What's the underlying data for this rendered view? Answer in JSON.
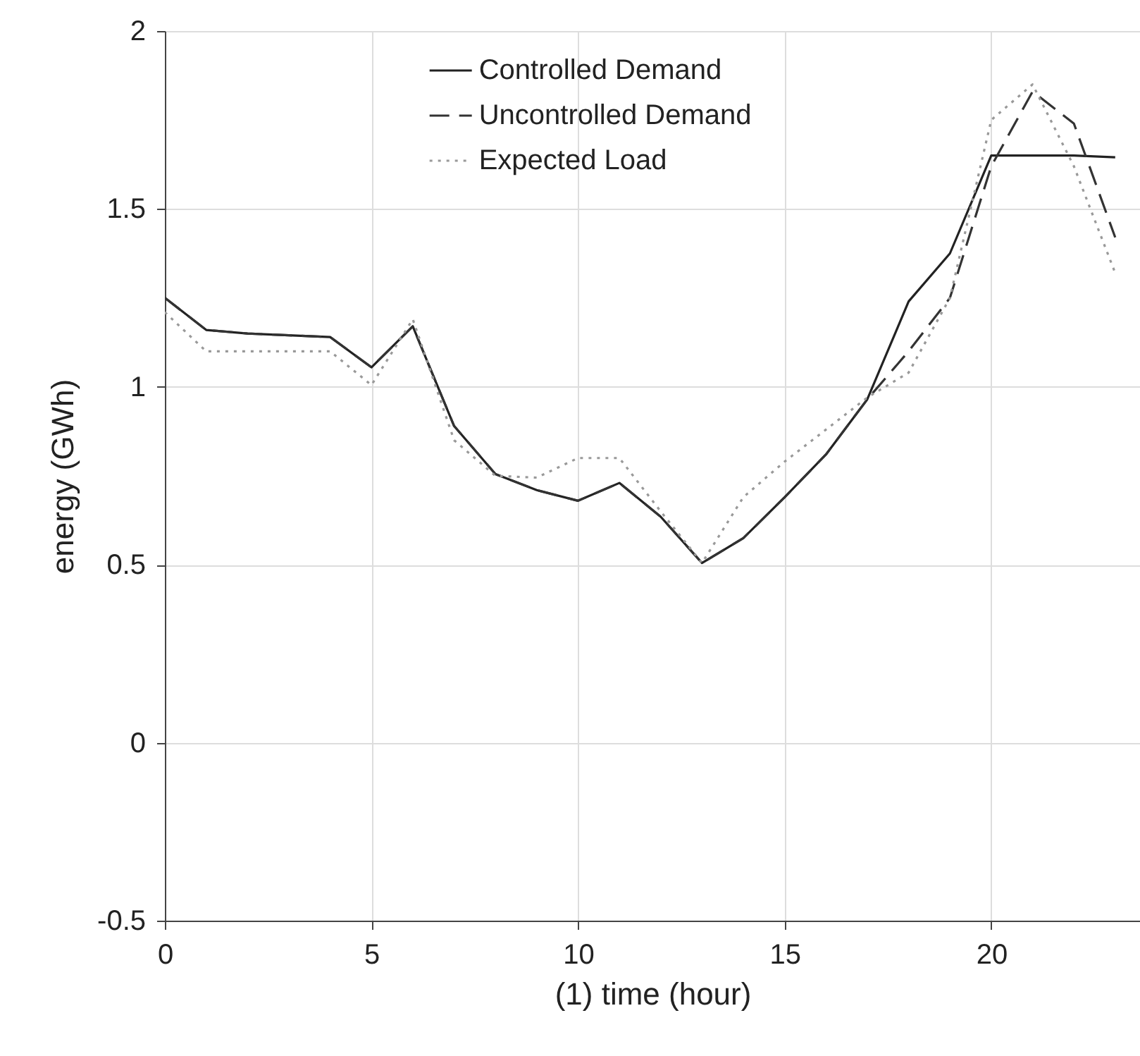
{
  "chart_data": {
    "type": "line",
    "xlabel": "(1) time (hour)",
    "ylabel": "energy (GWh)",
    "x": [
      0,
      1,
      2,
      3,
      4,
      5,
      6,
      7,
      8,
      9,
      10,
      11,
      12,
      13,
      14,
      15,
      16,
      17,
      18,
      19,
      20,
      21,
      22,
      23
    ],
    "series": [
      {
        "name": "Controlled Demand",
        "color": "#222222",
        "line_style": "solid",
        "values": [
          1.25,
          1.16,
          1.15,
          1.145,
          1.14,
          1.055,
          1.17,
          0.89,
          0.755,
          0.71,
          0.68,
          0.73,
          0.635,
          0.505,
          0.575,
          0.69,
          0.81,
          0.965,
          1.24,
          1.375,
          1.65,
          1.65,
          1.65,
          1.645
        ]
      },
      {
        "name": "Uncontrolled Demand",
        "color": "#333333",
        "line_style": "dashed",
        "values": [
          1.25,
          1.16,
          1.15,
          1.145,
          1.14,
          1.055,
          1.17,
          0.89,
          0.755,
          0.71,
          0.68,
          0.73,
          0.635,
          0.505,
          0.575,
          0.69,
          0.81,
          0.965,
          1.1,
          1.25,
          1.62,
          1.83,
          1.74,
          1.42
        ]
      },
      {
        "name": "Expected Load",
        "color": "#999999",
        "line_style": "dotted",
        "values": [
          1.21,
          1.1,
          1.1,
          1.1,
          1.1,
          1.005,
          1.19,
          0.85,
          0.75,
          0.745,
          0.8,
          0.8,
          0.65,
          0.505,
          0.69,
          0.79,
          0.88,
          0.97,
          1.04,
          1.25,
          1.75,
          1.85,
          1.62,
          1.32
        ]
      }
    ],
    "xlim": [
      0,
      23.6
    ],
    "xticks": [
      0,
      5,
      10,
      15,
      20
    ],
    "ylim": [
      -0.5,
      2
    ],
    "yticks": [
      -0.5,
      0,
      0.5,
      1,
      1.5,
      2
    ],
    "grid": true,
    "legend": "top"
  }
}
